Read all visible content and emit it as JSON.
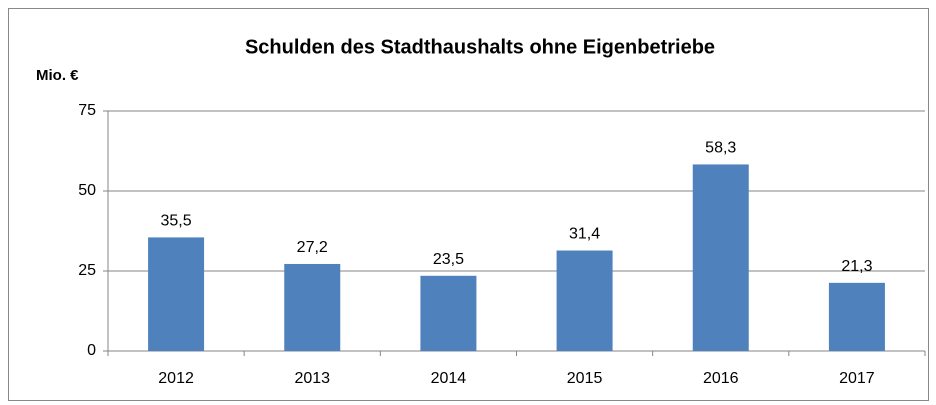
{
  "chart_data": {
    "type": "bar",
    "title": "Schulden des Stadthaushalts ohne Eigenbetriebe",
    "y_label": "Mio. €",
    "categories": [
      "2012",
      "2013",
      "2014",
      "2015",
      "2016",
      "2017"
    ],
    "values": [
      35.5,
      27.2,
      23.5,
      31.4,
      58.3,
      21.3
    ],
    "value_labels": [
      "35,5",
      "27,2",
      "23,5",
      "31,4",
      "58,3",
      "21,3"
    ],
    "color": "#4f81bd",
    "ylim": [
      0,
      75
    ],
    "yticks": [
      0,
      25,
      50,
      75
    ],
    "grid": true
  }
}
